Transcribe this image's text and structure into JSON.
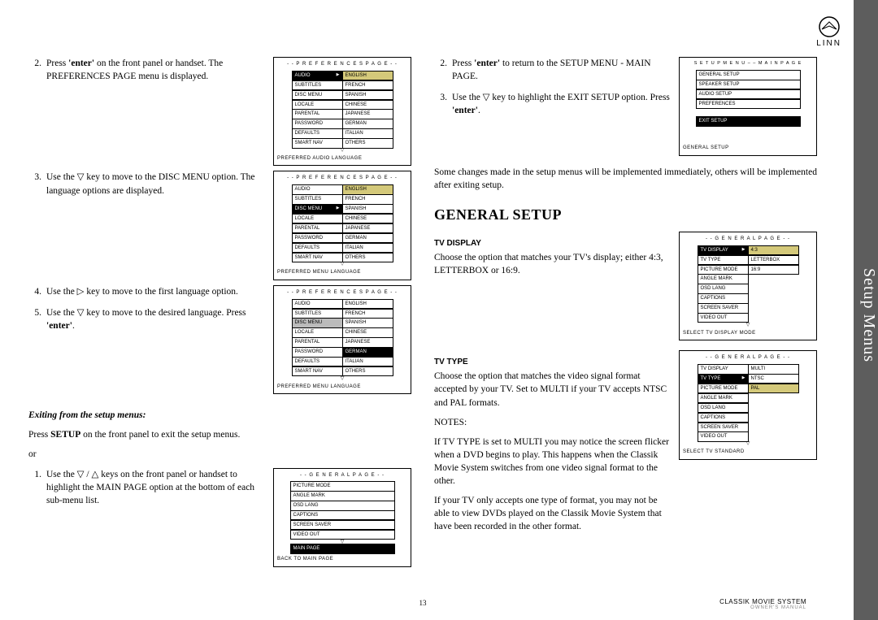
{
  "brand": "LINN",
  "side_tab": "Setup Menus",
  "page_number": "13",
  "footer_line1": "CLASSIK MOVIE SYSTEM",
  "footer_line2": "OWNER'S MANUAL",
  "colors": {
    "highlight": "#d4c97a",
    "selected_bg": "#000000",
    "selected_fg": "#ffffff",
    "grey": "#bbbbbb",
    "sidebar": "#5d5d5d"
  },
  "left": {
    "step2": {
      "num": "2.",
      "text_a": "Press ",
      "bold_a": "'enter'",
      "text_b": " on the front panel or handset. The PREFERENCES PAGE menu is displayed."
    },
    "step3": {
      "num": "3.",
      "text": "Use the ▽ key to move to the DISC MENU option. The language options are displayed."
    },
    "step4": {
      "num": "4.",
      "text": "Use the ▷ key to move to the first language option."
    },
    "step5": {
      "num": "5.",
      "text_a": "Use the ▽ key to move to the desired language. Press ",
      "bold_a": "'enter'",
      "text_b": "."
    },
    "exit_heading": "Exiting from the setup menus:",
    "exit_p1_a": "Press ",
    "exit_p1_bold": "SETUP",
    "exit_p1_b": " on the front panel to exit the setup menus.",
    "exit_or": "or",
    "exit_step1": {
      "num": "1.",
      "text": "Use the ▽ / △ keys on the front panel or handset to highlight the MAIN PAGE option at the bottom of each sub-menu list."
    }
  },
  "right": {
    "step2": {
      "num": "2.",
      "text_a": "Press ",
      "bold_a": "'enter'",
      "text_b": " to return to the SETUP MENU - MAIN PAGE."
    },
    "step3": {
      "num": "3.",
      "text_a": "Use the ▽ key to highlight the EXIT SETUP option. Press ",
      "bold_a": "'enter'",
      "text_b": "."
    },
    "changes_note": "Some changes made in the setup menus will be implemented immediately, others will be implemented after exiting setup.",
    "general_setup_heading": "GENERAL SETUP",
    "tv_display_heading": "TV Display",
    "tv_display_text": "Choose the option that matches your TV's display; either 4:3, LETTERBOX or 16:9.",
    "tv_type_heading": "TV Type",
    "tv_type_p1": "Choose the option that matches the video signal format accepted by your TV. Set to MULTI if your TV accepts NTSC and PAL formats.",
    "tv_type_notes_label": "NOTES:",
    "tv_type_p2": "If TV TYPE is set to MULTI you may notice the screen flicker when a DVD begins to play. This happens when the Classik Movie System switches from one video signal format to the other.",
    "tv_type_p3": "If your TV only accepts one type of format, you may not be able to view DVDs played on the Classik Movie System that have been recorded in the other format."
  },
  "menus": {
    "pref1": {
      "title": "- -   P R E F E R E N C E S   P A G E   - -",
      "footer": "PREFERRED AUDIO LANGUAGE",
      "left": [
        {
          "t": "AUDIO",
          "c": "sel play"
        },
        {
          "t": "SUBTITLES"
        },
        {
          "t": "DISC MENU"
        },
        {
          "t": "LOCALE"
        },
        {
          "t": "PARENTAL"
        },
        {
          "t": "PASSWORD"
        },
        {
          "t": "DEFAULTS"
        },
        {
          "t": "SMART NAV"
        }
      ],
      "right": [
        {
          "t": "ENGLISH",
          "c": "hl"
        },
        {
          "t": "FRENCH"
        },
        {
          "t": "SPANISH"
        },
        {
          "t": "CHINESE"
        },
        {
          "t": "JAPANESE"
        },
        {
          "t": "GERMAN"
        },
        {
          "t": "ITALIAN"
        },
        {
          "t": "OTHERS"
        }
      ]
    },
    "pref2": {
      "title": "- -   P R E F E R E N C E S   P A G E   - -",
      "footer": "PREFERRED MENU LANGUAGE",
      "left": [
        {
          "t": "AUDIO"
        },
        {
          "t": "SUBTITLES"
        },
        {
          "t": "DISC MENU",
          "c": "sel play"
        },
        {
          "t": "LOCALE"
        },
        {
          "t": "PARENTAL"
        },
        {
          "t": "PASSWORD"
        },
        {
          "t": "DEFAULTS"
        },
        {
          "t": "SMART NAV"
        }
      ],
      "right": [
        {
          "t": "ENGLISH",
          "c": "hl"
        },
        {
          "t": "FRENCH"
        },
        {
          "t": "SPANISH"
        },
        {
          "t": "CHINESE"
        },
        {
          "t": "JAPANESE"
        },
        {
          "t": "GERMAN"
        },
        {
          "t": "ITALIAN"
        },
        {
          "t": "OTHERS"
        }
      ]
    },
    "pref3": {
      "title": "- -   P R E F E R E N C E S   P A G E   - -",
      "footer": "PREFERRED MENU LANGUAGE",
      "left": [
        {
          "t": "AUDIO"
        },
        {
          "t": "SUBTITLES"
        },
        {
          "t": "DISC MENU",
          "c": "grey"
        },
        {
          "t": "LOCALE"
        },
        {
          "t": "PARENTAL"
        },
        {
          "t": "PASSWORD"
        },
        {
          "t": "DEFAULTS"
        },
        {
          "t": "SMART NAV"
        }
      ],
      "right": [
        {
          "t": "ENGLISH"
        },
        {
          "t": "FRENCH"
        },
        {
          "t": "SPANISH"
        },
        {
          "t": "CHINESE"
        },
        {
          "t": "JAPANESE"
        },
        {
          "t": "GERMAN",
          "c": "sel"
        },
        {
          "t": "ITALIAN"
        },
        {
          "t": "OTHERS"
        }
      ]
    },
    "general1": {
      "title": "- -   G E N E R A L   P A G E   - -",
      "footer": "BACK TO MAIN PAGE",
      "items": [
        {
          "t": "PICTURE MODE"
        },
        {
          "t": "ANGLE MARK"
        },
        {
          "t": "OSD LANG"
        },
        {
          "t": "CAPTIONS"
        },
        {
          "t": "SCREEN SAVER"
        },
        {
          "t": "VIDEO OUT"
        }
      ],
      "bottom": {
        "t": "MAIN PAGE",
        "c": "sel"
      }
    },
    "setup_main": {
      "title": "S E T U P   M E N U – – M A I N   P A G E",
      "footer": "GENERAL SETUP",
      "items": [
        {
          "t": "GENERAL SETUP"
        },
        {
          "t": "SPEAKER SETUP"
        },
        {
          "t": "AUDIO SETUP"
        },
        {
          "t": "PREFERENCES"
        }
      ],
      "bottom": {
        "t": "EXIT SETUP",
        "c": "sel"
      }
    },
    "gen_tvdisplay": {
      "title": "- -   G E N E R A L   P A G E   - -",
      "footer": "SELECT TV DISPLAY MODE",
      "left": [
        {
          "t": "TV DISPLAY",
          "c": "sel play"
        },
        {
          "t": "TV TYPE"
        },
        {
          "t": "PICTURE MODE"
        },
        {
          "t": "ANGLE MARK"
        },
        {
          "t": "OSD LANG"
        },
        {
          "t": "CAPTIONS"
        },
        {
          "t": "SCREEN SAVER"
        },
        {
          "t": "VIDEO OUT"
        }
      ],
      "right": [
        {
          "t": "4:3",
          "c": "hl"
        },
        {
          "t": "LETTERBOX"
        },
        {
          "t": "16:9"
        }
      ]
    },
    "gen_tvtype": {
      "title": "- -   G E N E R A L   P A G E   - -",
      "footer": "SELECT TV STANDARD",
      "left": [
        {
          "t": "TV DISPLAY"
        },
        {
          "t": "TV TYPE",
          "c": "sel play"
        },
        {
          "t": "PICTURE MODE"
        },
        {
          "t": "ANGLE MARK"
        },
        {
          "t": "OSD LANG"
        },
        {
          "t": "CAPTIONS"
        },
        {
          "t": "SCREEN SAVER"
        },
        {
          "t": "VIDEO OUT"
        }
      ],
      "right": [
        {
          "t": "MULTI"
        },
        {
          "t": "NTSC"
        },
        {
          "t": "PAL",
          "c": "hl"
        }
      ]
    }
  }
}
